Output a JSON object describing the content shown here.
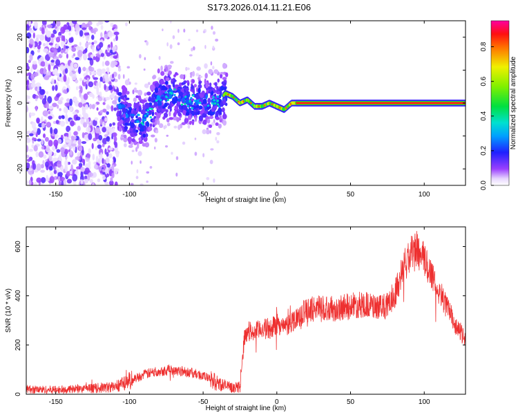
{
  "title": "S173.2026.014.11.21.E06",
  "chart_data": [
    {
      "type": "heatmap",
      "xlabel": "Height of straight line (km)",
      "ylabel": "Frequency (Hz)",
      "xlim": [
        -170,
        128
      ],
      "ylim": [
        -25,
        25
      ],
      "xticks": [
        -150,
        -100,
        -50,
        0,
        50,
        100
      ],
      "xtick_labels": [
        "-150",
        "-100",
        "-50",
        "0",
        "50",
        "100"
      ],
      "yticks": [
        -20,
        -10,
        0,
        10,
        20
      ],
      "ytick_labels": [
        "-20",
        "-10",
        "0",
        "10",
        "20"
      ],
      "colorbar": {
        "label": "Normalized spectral amplitude",
        "range": [
          0.0,
          0.95
        ],
        "ticks": [
          0.0,
          0.2,
          0.4,
          0.6,
          0.8
        ],
        "tick_labels": [
          "0.0",
          "0.2",
          "0.4",
          "0.6",
          "0.8"
        ]
      },
      "ridge": {
        "x": [
          -170,
          -110,
          -100,
          -90,
          -80,
          -70,
          -60,
          -50,
          -40,
          -35,
          -30,
          -25,
          -20,
          -15,
          -10,
          -5,
          0,
          5,
          10,
          15,
          128
        ],
        "y": [
          0,
          0,
          -4,
          -6,
          2,
          3,
          0,
          1,
          0,
          3,
          2,
          0,
          1,
          -1,
          -1,
          0,
          -1,
          -2,
          0,
          0,
          0
        ],
        "description_regions": {
          "noise_region_x": [
            -170,
            -110
          ],
          "scatter_region_x": [
            -110,
            -35
          ],
          "line_region_x": [
            15,
            128
          ]
        }
      }
    },
    {
      "type": "line",
      "xlabel": "Height of straight line (km)",
      "ylabel": "SNR (10 * v/v)",
      "xlim": [
        -170,
        128
      ],
      "ylim": [
        0,
        680
      ],
      "xticks": [
        -150,
        -100,
        -50,
        0,
        50,
        100
      ],
      "xtick_labels": [
        "-150",
        "-100",
        "-50",
        "0",
        "50",
        "100"
      ],
      "yticks": [
        0,
        200,
        400,
        600
      ],
      "ytick_labels": [
        "0",
        "200",
        "400",
        "600"
      ],
      "color": "#ee3030",
      "series": [
        {
          "name": "SNR",
          "x": [
            -170,
            -150,
            -130,
            -110,
            -100,
            -90,
            -80,
            -70,
            -60,
            -50,
            -40,
            -30,
            -25,
            -22,
            -20,
            -15,
            -10,
            -5,
            0,
            5,
            10,
            15,
            20,
            30,
            40,
            50,
            60,
            70,
            75,
            80,
            85,
            90,
            95,
            100,
            105,
            110,
            115,
            120,
            128
          ],
          "y": [
            20,
            18,
            22,
            30,
            55,
            80,
            95,
            100,
            90,
            75,
            45,
            25,
            30,
            230,
            260,
            250,
            270,
            260,
            290,
            270,
            295,
            320,
            340,
            355,
            345,
            360,
            365,
            350,
            360,
            410,
            500,
            560,
            585,
            545,
            490,
            420,
            360,
            300,
            215
          ]
        }
      ]
    }
  ]
}
